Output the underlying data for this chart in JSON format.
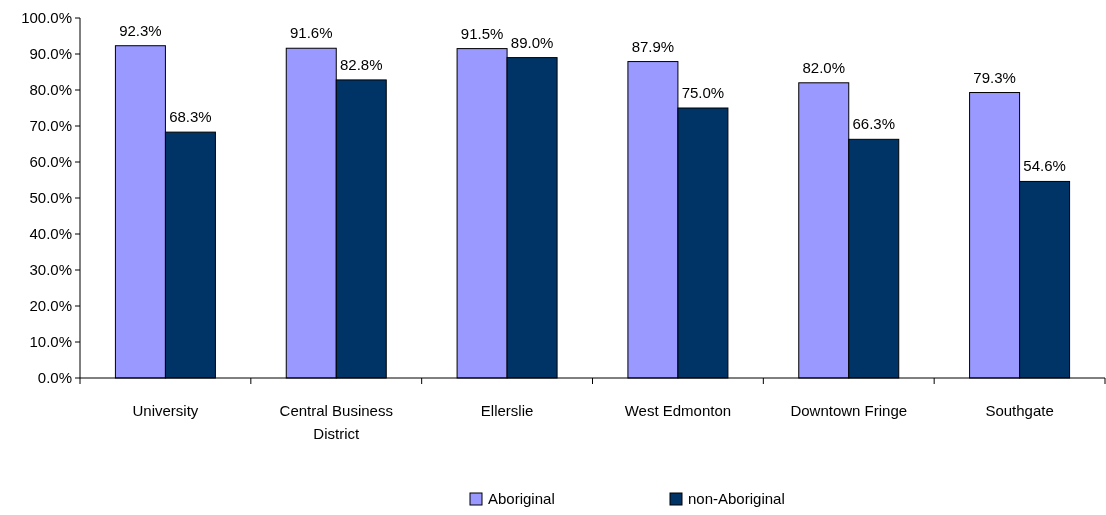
{
  "chart_data": {
    "type": "bar",
    "categories": [
      "University",
      "Central Business District",
      "Ellerslie",
      "West Edmonton",
      "Downtown Fringe",
      "Southgate"
    ],
    "series": [
      {
        "name": "Aboriginal",
        "color": "#9999ff",
        "values": [
          92.3,
          91.6,
          91.5,
          87.9,
          82.0,
          79.3
        ],
        "value_labels": [
          "92.3%",
          "91.6%",
          "91.5%",
          "87.9%",
          "82.0%",
          "79.3%"
        ]
      },
      {
        "name": "non-Aboriginal",
        "color": "#003366",
        "values": [
          68.3,
          82.8,
          89.0,
          75.0,
          66.3,
          54.6
        ],
        "value_labels": [
          "68.3%",
          "82.8%",
          "89.0%",
          "75.0%",
          "66.3%",
          "54.6%"
        ]
      }
    ],
    "ylim": [
      0,
      100
    ],
    "yticks": [
      {
        "value": 0,
        "label": "0.0%"
      },
      {
        "value": 10,
        "label": "10.0%"
      },
      {
        "value": 20,
        "label": "20.0%"
      },
      {
        "value": 30,
        "label": "30.0%"
      },
      {
        "value": 40,
        "label": "40.0%"
      },
      {
        "value": 50,
        "label": "50.0%"
      },
      {
        "value": 60,
        "label": "60.0%"
      },
      {
        "value": 70,
        "label": "70.0%"
      },
      {
        "value": 80,
        "label": "80.0%"
      },
      {
        "value": 90,
        "label": "90.0%"
      },
      {
        "value": 100,
        "label": "100.0%"
      }
    ],
    "grid": false,
    "legend": "bottom"
  }
}
